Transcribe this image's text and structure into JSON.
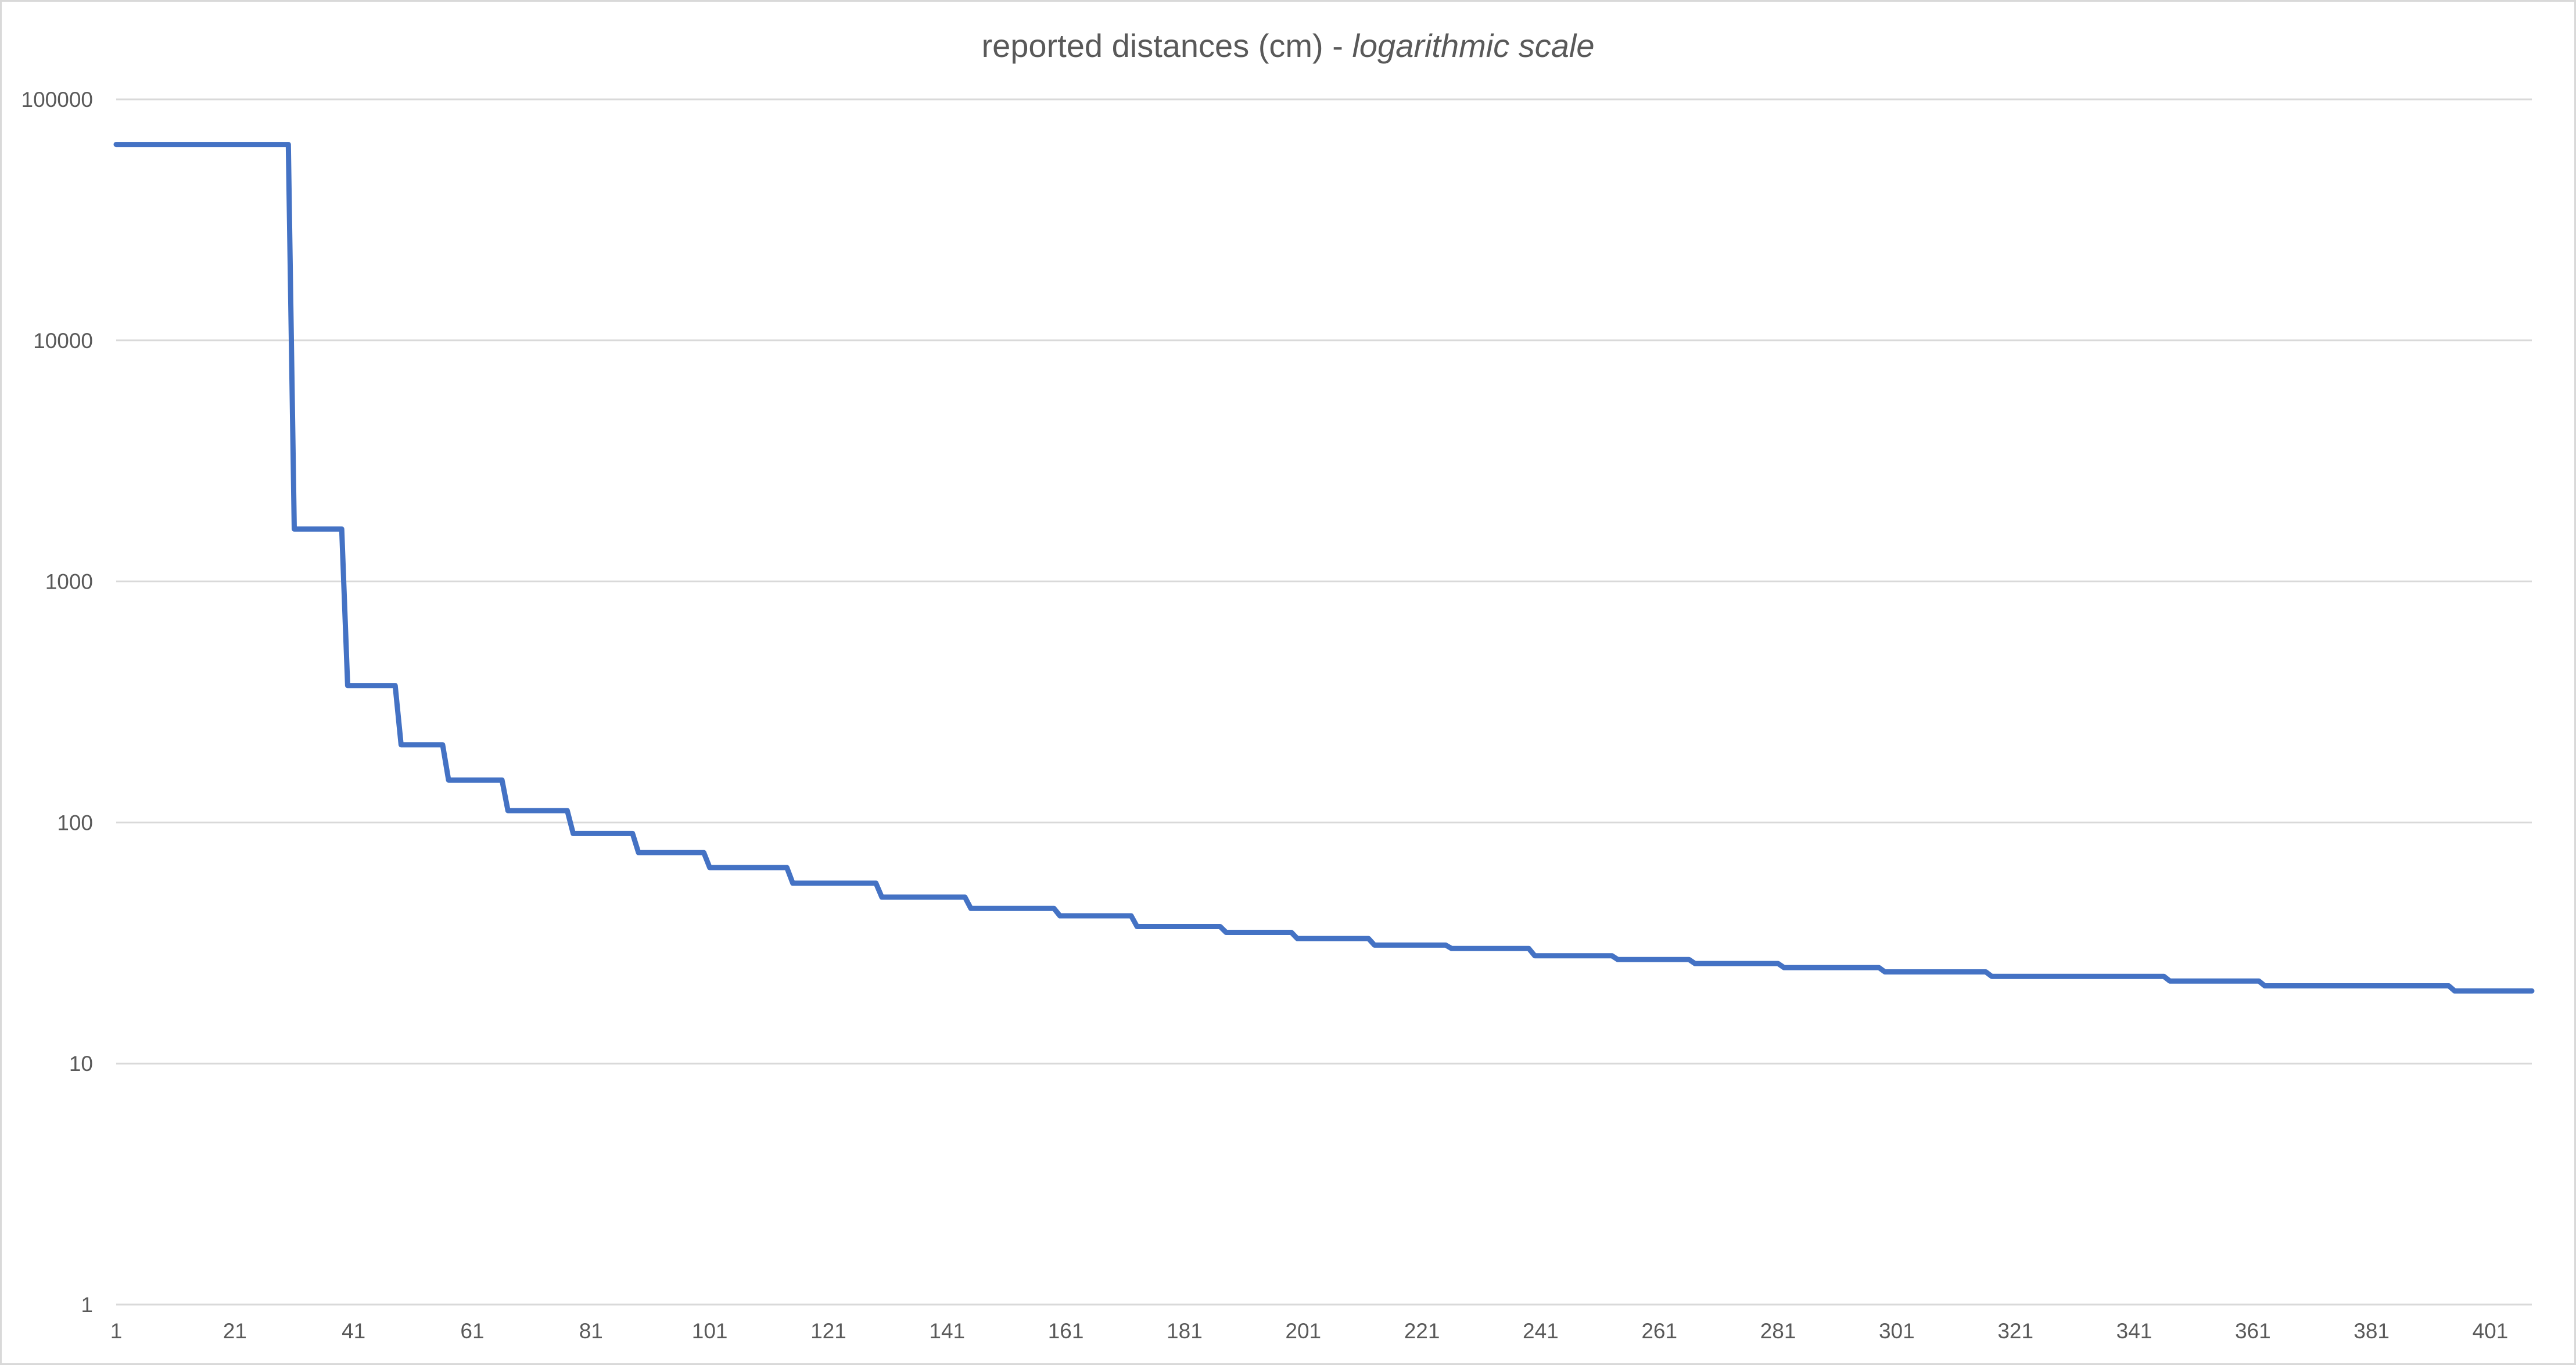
{
  "chart_data": {
    "type": "line",
    "title": {
      "main": "reported distances (cm)",
      "separator": " - ",
      "emphasis": "logarithmic scale"
    },
    "xlabel": "",
    "ylabel": "",
    "y_scale": "log",
    "ylim": [
      1,
      100000
    ],
    "y_ticks": [
      {
        "value": 1,
        "label": "1"
      },
      {
        "value": 10,
        "label": "10"
      },
      {
        "value": 100,
        "label": "100"
      },
      {
        "value": 1000,
        "label": "1000"
      },
      {
        "value": 10000,
        "label": "10000"
      },
      {
        "value": 100000,
        "label": "100000"
      }
    ],
    "xlim": [
      1,
      408
    ],
    "x_ticks": [
      {
        "value": 1,
        "label": "1"
      },
      {
        "value": 21,
        "label": "21"
      },
      {
        "value": 41,
        "label": "41"
      },
      {
        "value": 61,
        "label": "61"
      },
      {
        "value": 81,
        "label": "81"
      },
      {
        "value": 101,
        "label": "101"
      },
      {
        "value": 121,
        "label": "121"
      },
      {
        "value": 141,
        "label": "141"
      },
      {
        "value": 161,
        "label": "161"
      },
      {
        "value": 181,
        "label": "181"
      },
      {
        "value": 201,
        "label": "201"
      },
      {
        "value": 221,
        "label": "221"
      },
      {
        "value": 241,
        "label": "241"
      },
      {
        "value": 261,
        "label": "261"
      },
      {
        "value": 281,
        "label": "281"
      },
      {
        "value": 301,
        "label": "301"
      },
      {
        "value": 321,
        "label": "321"
      },
      {
        "value": 341,
        "label": "341"
      },
      {
        "value": 361,
        "label": "361"
      },
      {
        "value": 381,
        "label": "381"
      },
      {
        "value": 401,
        "label": "401"
      }
    ],
    "grid": true,
    "legend": "none",
    "series": [
      {
        "color": "#4472c4",
        "x": [
          1,
          30,
          31,
          39,
          40,
          48,
          49,
          56,
          57,
          66,
          67,
          77,
          78,
          88,
          89,
          100,
          101,
          114,
          115,
          129,
          130,
          144,
          145,
          159,
          160,
          172,
          173,
          187,
          188,
          199,
          200,
          212,
          213,
          225,
          226,
          239,
          240,
          253,
          254,
          266,
          267,
          281,
          282,
          298,
          299,
          316,
          317,
          346,
          347,
          362,
          363,
          394,
          395,
          408
        ],
        "values": [
          65000,
          65000,
          1650,
          1650,
          370,
          370,
          210,
          210,
          150,
          150,
          112,
          112,
          90,
          90,
          75,
          75,
          65,
          65,
          56,
          56,
          49,
          49,
          44,
          44,
          41,
          41,
          37,
          37,
          35,
          35,
          33,
          33,
          31,
          31,
          30,
          30,
          28,
          28,
          27,
          27,
          26,
          26,
          25,
          25,
          24,
          24,
          23,
          23,
          22,
          22,
          21,
          21,
          20,
          20
        ]
      }
    ]
  }
}
